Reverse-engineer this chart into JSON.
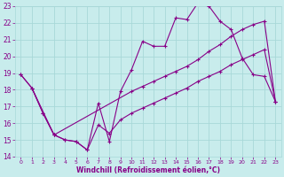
{
  "xlabel": "Windchill (Refroidissement éolien,°C)",
  "bg_color": "#c8ecec",
  "grid_color": "#a8d8d8",
  "line_color": "#880088",
  "ylim": [
    14,
    23
  ],
  "xlim": [
    -0.5,
    23.5
  ],
  "yticks": [
    14,
    15,
    16,
    17,
    18,
    19,
    20,
    21,
    22,
    23
  ],
  "xticks": [
    0,
    1,
    2,
    3,
    4,
    5,
    6,
    7,
    8,
    9,
    10,
    11,
    12,
    13,
    14,
    15,
    16,
    17,
    18,
    19,
    20,
    21,
    22,
    23
  ],
  "line1_x": [
    0,
    1,
    2,
    3,
    4,
    5,
    6,
    7,
    8,
    9,
    10,
    11,
    12,
    13,
    14,
    15,
    16,
    17,
    18,
    19,
    20,
    21,
    22,
    23
  ],
  "line1_y": [
    18.9,
    18.1,
    16.6,
    15.3,
    15.0,
    14.9,
    14.4,
    17.2,
    14.9,
    17.9,
    19.2,
    20.9,
    20.6,
    20.6,
    22.3,
    22.2,
    23.2,
    23.0,
    22.1,
    21.6,
    19.9,
    18.9,
    18.8,
    17.3
  ],
  "line2_x": [
    0,
    1,
    2,
    3,
    10,
    11,
    12,
    13,
    14,
    15,
    16,
    17,
    18,
    19,
    20,
    21,
    22,
    23
  ],
  "line2_y": [
    18.9,
    18.1,
    16.6,
    15.3,
    17.9,
    18.2,
    18.5,
    18.8,
    19.1,
    19.4,
    19.8,
    20.3,
    20.7,
    21.2,
    21.6,
    21.9,
    22.1,
    17.3
  ],
  "line3_x": [
    1,
    3,
    4,
    5,
    6,
    7,
    8,
    9,
    10,
    11,
    12,
    13,
    14,
    15,
    16,
    17,
    18,
    19,
    20,
    21,
    22,
    23
  ],
  "line3_y": [
    18.1,
    15.3,
    15.0,
    14.9,
    14.4,
    15.9,
    15.4,
    16.2,
    16.6,
    16.9,
    17.2,
    17.5,
    17.8,
    18.1,
    18.5,
    18.8,
    19.1,
    19.5,
    19.8,
    20.1,
    20.4,
    17.3
  ]
}
